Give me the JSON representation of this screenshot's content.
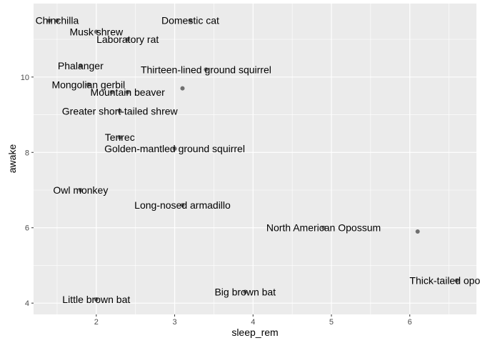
{
  "chart_data": {
    "type": "scatter",
    "title": "",
    "xlabel": "sleep_rem",
    "ylabel": "awake",
    "xlim": [
      1.2,
      6.85
    ],
    "ylim": [
      3.7,
      11.95
    ],
    "x_ticks": [
      2,
      3,
      4,
      5,
      6
    ],
    "y_ticks": [
      4,
      6,
      8,
      10
    ],
    "grid": true,
    "colors": {
      "panel": "#ebebeb",
      "grid_major": "#ffffff",
      "point": "#595959",
      "text": "#000000",
      "tick_text": "#4d4d4d"
    },
    "points": [
      {
        "x": 1.5,
        "y": 11.5,
        "label": "Chinchilla"
      },
      {
        "x": 1.4,
        "y": 11.5,
        "label": ""
      },
      {
        "x": 3.2,
        "y": 11.5,
        "label": "Domestic cat"
      },
      {
        "x": 2.0,
        "y": 11.2,
        "label": "Musk shrew"
      },
      {
        "x": 2.4,
        "y": 11.0,
        "label": "Laboratory rat"
      },
      {
        "x": 1.8,
        "y": 10.3,
        "label": "Phalanger"
      },
      {
        "x": 3.4,
        "y": 10.2,
        "label": "Thirteen-lined ground squirrel"
      },
      {
        "x": 1.9,
        "y": 9.8,
        "label": "Mongolian gerbil"
      },
      {
        "x": 3.1,
        "y": 9.7,
        "label": ""
      },
      {
        "x": 2.4,
        "y": 9.6,
        "label": "Mountain beaver"
      },
      {
        "x": 2.2,
        "y": 9.6,
        "label": ""
      },
      {
        "x": 2.3,
        "y": 9.1,
        "label": "Greater short-tailed shrew"
      },
      {
        "x": 2.3,
        "y": 8.4,
        "label": "Tenrec"
      },
      {
        "x": 3.0,
        "y": 8.1,
        "label": "Golden-mantled ground squirrel"
      },
      {
        "x": 1.8,
        "y": 7.0,
        "label": "Owl monkey"
      },
      {
        "x": 3.1,
        "y": 6.6,
        "label": "Long-nosed armadillo"
      },
      {
        "x": 4.9,
        "y": 6.0,
        "label": "North American Opossum"
      },
      {
        "x": 6.1,
        "y": 5.9,
        "label": ""
      },
      {
        "x": 6.6,
        "y": 4.6,
        "label": "Thick-tailed opossum"
      },
      {
        "x": 3.9,
        "y": 4.3,
        "label": "Big brown bat"
      },
      {
        "x": 2.0,
        "y": 4.1,
        "label": "Little brown bat"
      }
    ]
  }
}
